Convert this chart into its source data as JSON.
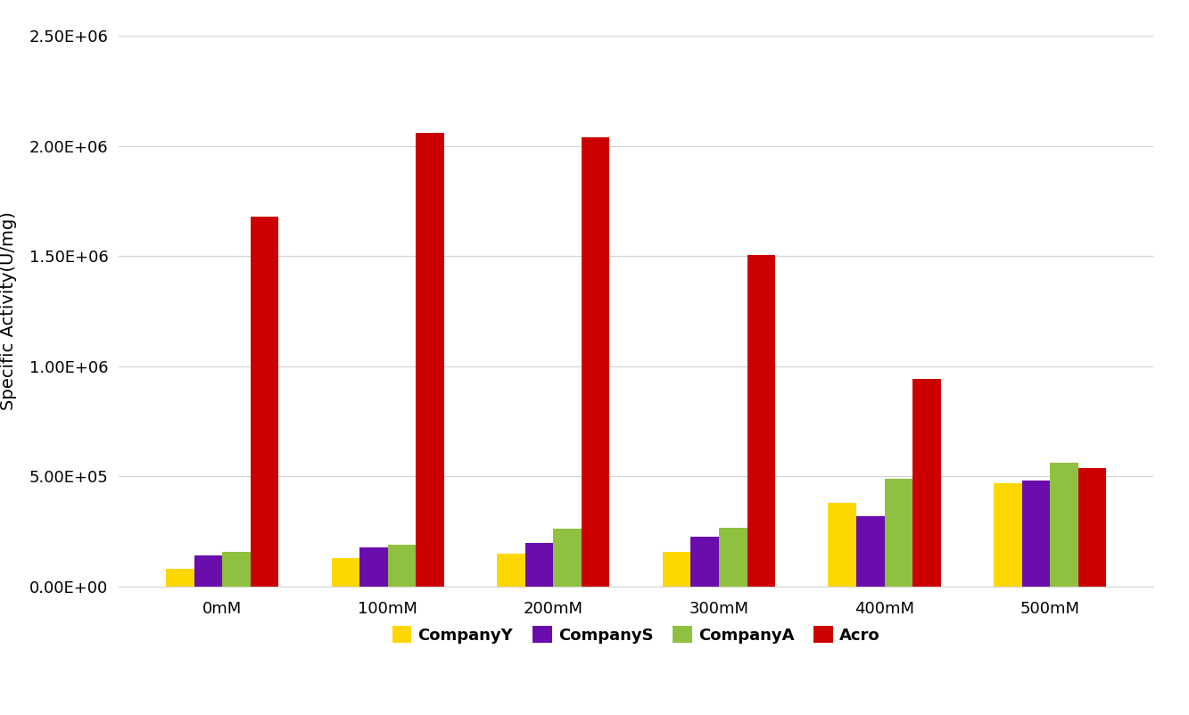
{
  "categories": [
    "0mM",
    "100mM",
    "200mM",
    "300mM",
    "400mM",
    "500mM"
  ],
  "series": {
    "CompanyY": [
      80000,
      130000,
      150000,
      155000,
      380000,
      470000
    ],
    "CompanyS": [
      140000,
      175000,
      195000,
      225000,
      320000,
      480000
    ],
    "CompanyA": [
      155000,
      190000,
      260000,
      265000,
      490000,
      560000
    ],
    "Acro": [
      1680000,
      2060000,
      2040000,
      1505000,
      940000,
      535000
    ]
  },
  "colors": {
    "CompanyY": "#FFD700",
    "CompanyS": "#6A0DAD",
    "CompanyA": "#90C040",
    "Acro": "#CC0000"
  },
  "ylabel": "Specific Activity(U/mg)",
  "ylim": [
    0,
    2500000
  ],
  "yticks": [
    0,
    500000,
    1000000,
    1500000,
    2000000,
    2500000
  ],
  "background_color": "#FFFFFF",
  "legend_fontsize": 13,
  "label_fontsize": 14,
  "tick_fontsize": 13,
  "bar_width": 0.17,
  "figsize": [
    13.33,
    8.02
  ],
  "dpi": 100
}
